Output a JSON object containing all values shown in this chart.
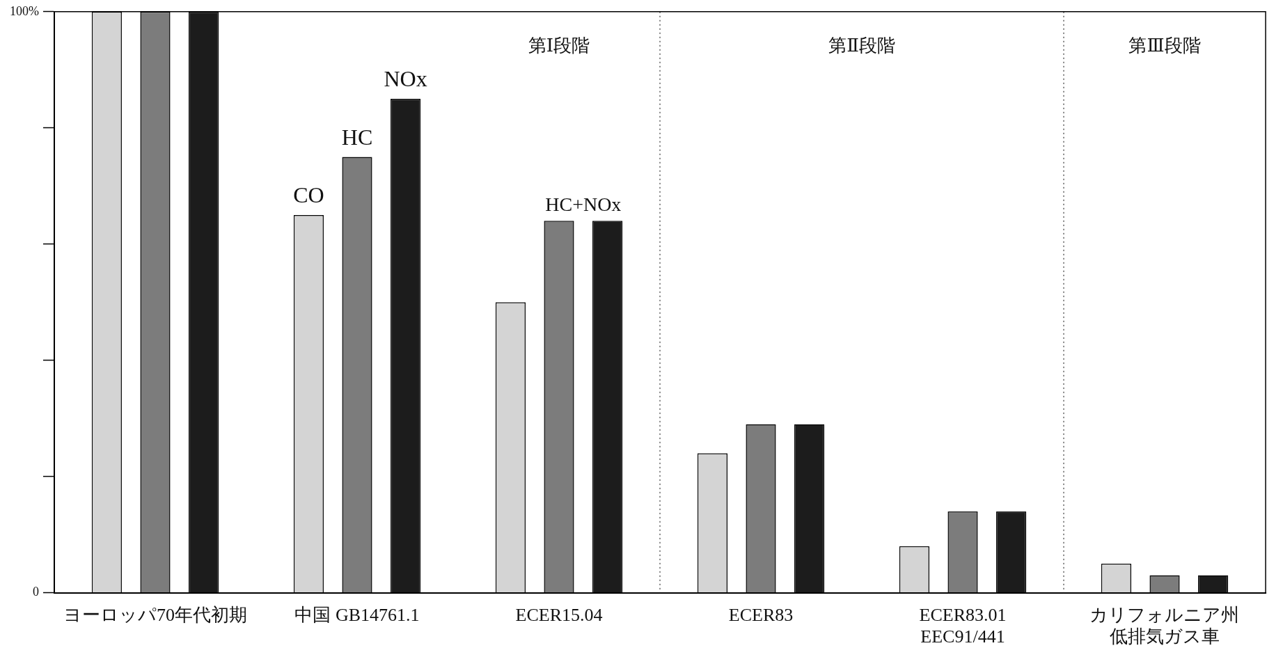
{
  "chart_data": {
    "type": "bar",
    "categories": [
      "ヨーロッパ70年代初期",
      "中国 GB14761.1",
      "ECER15.04",
      "ECER83",
      "ECER83.01\nEEC91/441",
      "カリフォルニア州低排気ガス車"
    ],
    "series": [
      {
        "name": "CO",
        "color": "#d4d4d4",
        "values": [
          100,
          65,
          50,
          24,
          8,
          5
        ]
      },
      {
        "name": "HC",
        "color": "#7c7c7c",
        "values": [
          100,
          75,
          64,
          29,
          14,
          3
        ]
      },
      {
        "name": "NOx",
        "color": "#1c1c1c",
        "values": [
          100,
          85,
          64,
          29,
          14,
          3
        ]
      }
    ],
    "ylim": [
      0,
      100
    ],
    "yticks": [
      0,
      {
        "value": 20,
        "label": null
      },
      {
        "value": 40,
        "label": null
      },
      {
        "value": 60,
        "label": null
      },
      {
        "value": 80,
        "label": null
      },
      {
        "value": 100,
        "label": "100%"
      }
    ],
    "grid": false,
    "legend": false,
    "annotations": [
      {
        "text": "HC+NOx",
        "x": "ECER15.04",
        "y": 64
      },
      "第Ⅰ段階",
      "第Ⅱ段階",
      "第Ⅲ段階"
    ]
  }
}
